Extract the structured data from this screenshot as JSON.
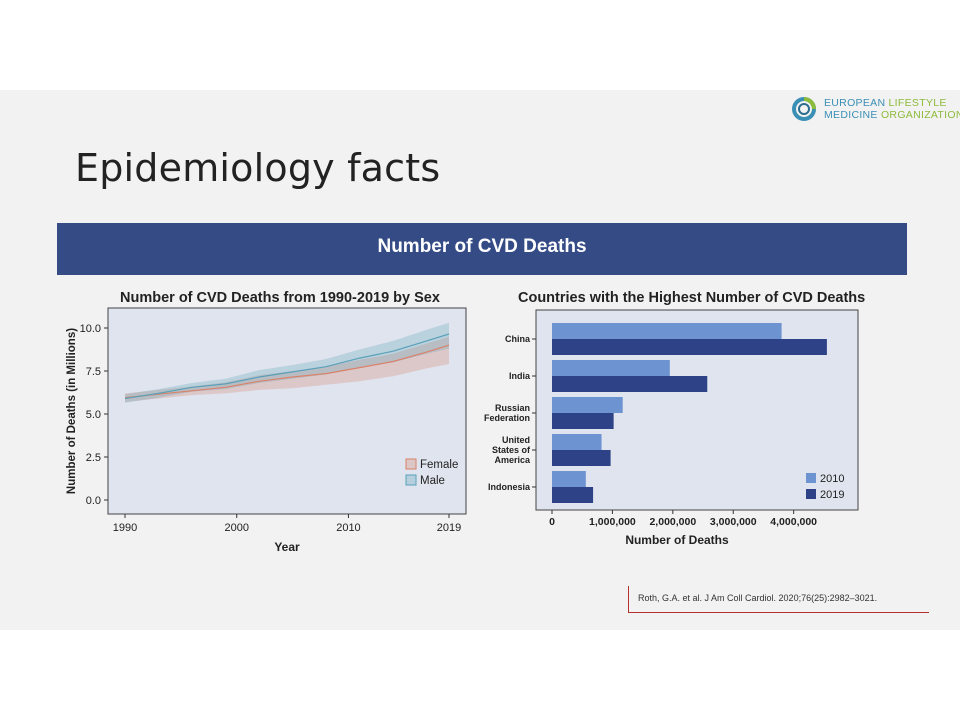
{
  "logo": {
    "line1_a": "EUROPEAN ",
    "line1_b": "LIFESTYLE",
    "line2_a": "MEDICINE ",
    "line2_b": "ORGANIZATION"
  },
  "slide_title": "Epidemiology facts",
  "banner": "Number of CVD Deaths",
  "citation": "Roth, G.A. et al. J Am Coll Cardiol. 2020;76(25):2982–3021.",
  "colors": {
    "banner": "#344b86",
    "female": "#d9826a",
    "male": "#5aa0b8",
    "bar2010": "#6d93d1",
    "bar2019": "#2e4288"
  },
  "chart_data": [
    {
      "type": "line",
      "title": "Number of CVD Deaths from 1990-2019 by Sex",
      "xlabel": "Year",
      "ylabel": "Number of Deaths (in Millions)",
      "xlim": [
        1990,
        2019
      ],
      "ylim": [
        0,
        10
      ],
      "xticks": [
        1990,
        2000,
        2010,
        2019
      ],
      "yticks": [
        "0.0",
        "2.5",
        "5.0",
        "7.5",
        "10.0"
      ],
      "x": [
        1990,
        1993,
        1996,
        1999,
        2002,
        2005,
        2008,
        2011,
        2014,
        2017,
        2019
      ],
      "series": [
        {
          "name": "Female",
          "values": [
            5.95,
            6.15,
            6.35,
            6.55,
            6.9,
            7.15,
            7.35,
            7.7,
            8.05,
            8.6,
            9.0
          ],
          "lower": [
            5.7,
            5.9,
            6.1,
            6.2,
            6.4,
            6.5,
            6.7,
            6.9,
            7.2,
            7.65,
            7.9
          ],
          "upper": [
            6.2,
            6.4,
            6.6,
            6.85,
            7.25,
            7.5,
            7.75,
            8.15,
            8.5,
            9.1,
            9.5
          ]
        },
        {
          "name": "Male",
          "values": [
            5.9,
            6.2,
            6.55,
            6.75,
            7.15,
            7.45,
            7.75,
            8.25,
            8.65,
            9.25,
            9.65
          ],
          "lower": [
            5.65,
            5.95,
            6.3,
            6.45,
            6.8,
            7.05,
            7.3,
            7.7,
            8.0,
            8.5,
            8.8
          ],
          "upper": [
            6.15,
            6.45,
            6.8,
            7.05,
            7.55,
            7.85,
            8.2,
            8.75,
            9.25,
            9.9,
            10.3
          ]
        }
      ],
      "legend": "bottom-right",
      "grid": false
    },
    {
      "type": "bar",
      "orientation": "horizontal",
      "title": "Countries with the Highest Number of CVD Deaths",
      "xlabel": "Number of Deaths",
      "ylabel": "",
      "categories": [
        "China",
        "India",
        "Russian Federation",
        "United States of America",
        "Indonesia"
      ],
      "category_lines": [
        [
          "China"
        ],
        [
          "India"
        ],
        [
          "Russian",
          "Federation"
        ],
        [
          "United",
          "States of",
          "America"
        ],
        [
          "Indonesia"
        ]
      ],
      "xlim": [
        0,
        4800000
      ],
      "xticks": [
        "0",
        "1,000,000",
        "2,000,000",
        "3,000,000",
        "4,000,000"
      ],
      "series": [
        {
          "name": "2010",
          "values": [
            3800000,
            1950000,
            1170000,
            820000,
            560000
          ]
        },
        {
          "name": "2019",
          "values": [
            4550000,
            2570000,
            1020000,
            970000,
            680000
          ]
        }
      ],
      "legend": "bottom-right",
      "grid": false
    }
  ]
}
